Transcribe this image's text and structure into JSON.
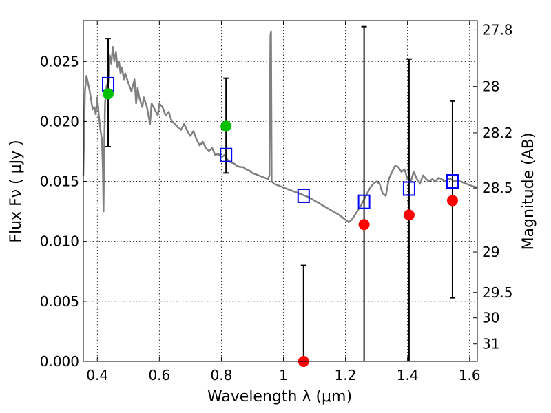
{
  "chart_data": {
    "type": "scatter",
    "xlabel": "Wavelength  λ (μm)",
    "ylabel": "Flux  Fν  ( μJy )",
    "ylabel_right": "Magnitude (AB)",
    "xlim": [
      0.355,
      1.625
    ],
    "ylim": [
      0.0,
      0.0284
    ],
    "x_ticks": [
      {
        "value": 0.4,
        "label": "0.4"
      },
      {
        "value": 0.6,
        "label": "0.6"
      },
      {
        "value": 0.8,
        "label": "0.8"
      },
      {
        "value": 1.0,
        "label": "1"
      },
      {
        "value": 1.2,
        "label": "1.2"
      },
      {
        "value": 1.4,
        "label": "1.4"
      },
      {
        "value": 1.6,
        "label": "1.6"
      }
    ],
    "y_ticks": [
      {
        "value": 0.0,
        "label": "0.000"
      },
      {
        "value": 0.005,
        "label": "0.005"
      },
      {
        "value": 0.01,
        "label": "0.010"
      },
      {
        "value": 0.015,
        "label": "0.015"
      },
      {
        "value": 0.02,
        "label": "0.020"
      },
      {
        "value": 0.025,
        "label": "0.025"
      }
    ],
    "right_ticks": [
      {
        "label": "27.8",
        "flux": 0.02763
      },
      {
        "label": "28",
        "flux": 0.02291
      },
      {
        "label": "28.2",
        "flux": 0.01905
      },
      {
        "label": "28.5",
        "flux": 0.01445
      },
      {
        "label": "29",
        "flux": 0.00912
      },
      {
        "label": "29.5",
        "flux": 0.00575
      },
      {
        "label": "30",
        "flux": 0.00363
      },
      {
        "label": "31",
        "flux": 0.00145
      }
    ],
    "grid": true,
    "model_spectrum": {
      "color": "#808080",
      "points": [
        [
          0.355,
          0.0155
        ],
        [
          0.36,
          0.0225
        ],
        [
          0.365,
          0.0238
        ],
        [
          0.37,
          0.0232
        ],
        [
          0.375,
          0.0226
        ],
        [
          0.38,
          0.0218
        ],
        [
          0.385,
          0.021
        ],
        [
          0.39,
          0.0212
        ],
        [
          0.395,
          0.0206
        ],
        [
          0.4,
          0.022
        ],
        [
          0.405,
          0.0205
        ],
        [
          0.41,
          0.0193
        ],
        [
          0.415,
          0.0185
        ],
        [
          0.418,
          0.016
        ],
        [
          0.42,
          0.0125
        ],
        [
          0.422,
          0.0175
        ],
        [
          0.425,
          0.0215
        ],
        [
          0.43,
          0.023
        ],
        [
          0.435,
          0.0232
        ],
        [
          0.44,
          0.0255
        ],
        [
          0.445,
          0.0248
        ],
        [
          0.45,
          0.0262
        ],
        [
          0.455,
          0.025
        ],
        [
          0.46,
          0.0258
        ],
        [
          0.465,
          0.0245
        ],
        [
          0.47,
          0.025
        ],
        [
          0.475,
          0.024
        ],
        [
          0.48,
          0.0245
        ],
        [
          0.485,
          0.0235
        ],
        [
          0.49,
          0.024
        ],
        [
          0.5,
          0.0232
        ],
        [
          0.51,
          0.0225
        ],
        [
          0.52,
          0.0235
        ],
        [
          0.525,
          0.0215
        ],
        [
          0.53,
          0.0228
        ],
        [
          0.535,
          0.022
        ],
        [
          0.545,
          0.0212
        ],
        [
          0.55,
          0.022
        ],
        [
          0.56,
          0.0212
        ],
        [
          0.57,
          0.0198
        ],
        [
          0.575,
          0.0215
        ],
        [
          0.585,
          0.021
        ],
        [
          0.595,
          0.0205
        ],
        [
          0.6,
          0.0215
        ],
        [
          0.61,
          0.0212
        ],
        [
          0.62,
          0.0205
        ],
        [
          0.63,
          0.0208
        ],
        [
          0.64,
          0.02
        ],
        [
          0.65,
          0.0198
        ],
        [
          0.66,
          0.0195
        ],
        [
          0.67,
          0.0193
        ],
        [
          0.68,
          0.0198
        ],
        [
          0.69,
          0.0192
        ],
        [
          0.7,
          0.0188
        ],
        [
          0.71,
          0.0192
        ],
        [
          0.72,
          0.0185
        ],
        [
          0.73,
          0.018
        ],
        [
          0.74,
          0.0183
        ],
        [
          0.75,
          0.0178
        ],
        [
          0.76,
          0.0175
        ],
        [
          0.77,
          0.0178
        ],
        [
          0.78,
          0.0172
        ],
        [
          0.79,
          0.0173
        ],
        [
          0.8,
          0.017
        ],
        [
          0.81,
          0.0172
        ],
        [
          0.82,
          0.0168
        ],
        [
          0.83,
          0.0166
        ],
        [
          0.84,
          0.0165
        ],
        [
          0.85,
          0.0163
        ],
        [
          0.86,
          0.0162
        ],
        [
          0.87,
          0.0162
        ],
        [
          0.88,
          0.016
        ],
        [
          0.89,
          0.0159
        ],
        [
          0.9,
          0.0157
        ],
        [
          0.91,
          0.0156
        ],
        [
          0.92,
          0.0155
        ],
        [
          0.93,
          0.0154
        ],
        [
          0.94,
          0.0153
        ],
        [
          0.95,
          0.0152
        ],
        [
          0.955,
          0.0155
        ],
        [
          0.958,
          0.0272
        ],
        [
          0.96,
          0.0275
        ],
        [
          0.962,
          0.015
        ],
        [
          0.97,
          0.0148
        ],
        [
          0.98,
          0.0147
        ],
        [
          0.99,
          0.0146
        ],
        [
          1.0,
          0.0145
        ],
        [
          1.02,
          0.0143
        ],
        [
          1.04,
          0.0141
        ],
        [
          1.06,
          0.0139
        ],
        [
          1.08,
          0.0137
        ],
        [
          1.1,
          0.0134
        ],
        [
          1.12,
          0.0131
        ],
        [
          1.14,
          0.0128
        ],
        [
          1.16,
          0.0125
        ],
        [
          1.18,
          0.0122
        ],
        [
          1.2,
          0.0118
        ],
        [
          1.21,
          0.0116
        ],
        [
          1.22,
          0.0118
        ],
        [
          1.23,
          0.0122
        ],
        [
          1.24,
          0.0126
        ],
        [
          1.25,
          0.013
        ],
        [
          1.26,
          0.0135
        ],
        [
          1.27,
          0.014
        ],
        [
          1.28,
          0.0145
        ],
        [
          1.29,
          0.0148
        ],
        [
          1.3,
          0.015
        ],
        [
          1.31,
          0.0148
        ],
        [
          1.32,
          0.014
        ],
        [
          1.33,
          0.0138
        ],
        [
          1.34,
          0.0152
        ],
        [
          1.35,
          0.0158
        ],
        [
          1.36,
          0.0163
        ],
        [
          1.37,
          0.0162
        ],
        [
          1.38,
          0.0158
        ],
        [
          1.39,
          0.016
        ],
        [
          1.4,
          0.0152
        ],
        [
          1.41,
          0.015
        ],
        [
          1.42,
          0.0158
        ],
        [
          1.43,
          0.0152
        ],
        [
          1.44,
          0.0148
        ],
        [
          1.45,
          0.0155
        ],
        [
          1.46,
          0.0152
        ],
        [
          1.47,
          0.015
        ],
        [
          1.48,
          0.0152
        ],
        [
          1.49,
          0.015
        ],
        [
          1.5,
          0.0153
        ],
        [
          1.51,
          0.0152
        ],
        [
          1.52,
          0.015
        ],
        [
          1.53,
          0.0152
        ],
        [
          1.54,
          0.0152
        ],
        [
          1.55,
          0.015
        ],
        [
          1.56,
          0.0151
        ],
        [
          1.57,
          0.015
        ],
        [
          1.58,
          0.0149
        ],
        [
          1.59,
          0.0148
        ],
        [
          1.6,
          0.0147
        ],
        [
          1.61,
          0.0146
        ],
        [
          1.625,
          0.0145
        ]
      ]
    },
    "series": [
      {
        "marker": "open-square",
        "color": "#0000ff",
        "points": [
          {
            "x": 0.435,
            "y": 0.0231
          },
          {
            "x": 0.815,
            "y": 0.0172
          },
          {
            "x": 1.065,
            "y": 0.0138
          },
          {
            "x": 1.26,
            "y": 0.0133
          },
          {
            "x": 1.405,
            "y": 0.0144
          },
          {
            "x": 1.545,
            "y": 0.015
          }
        ]
      },
      {
        "marker": "filled-circle",
        "color": "#00c000",
        "points": [
          {
            "x": 0.435,
            "y": 0.0223,
            "yerr": [
              0.0179,
              0.0269
            ]
          },
          {
            "x": 0.815,
            "y": 0.0196,
            "yerr": [
              0.0157,
              0.0236
            ]
          }
        ]
      },
      {
        "marker": "filled-circle",
        "color": "#ff0000",
        "points": [
          {
            "x": 1.065,
            "y": 0.0,
            "yerr": [
              0.0,
              0.008
            ]
          },
          {
            "x": 1.26,
            "y": 0.0114,
            "yerr": [
              0.0,
              0.0279
            ]
          },
          {
            "x": 1.405,
            "y": 0.0122,
            "yerr": [
              0.0,
              0.0252
            ]
          },
          {
            "x": 1.545,
            "y": 0.0134,
            "yerr": [
              0.0053,
              0.0217
            ]
          }
        ]
      }
    ]
  }
}
